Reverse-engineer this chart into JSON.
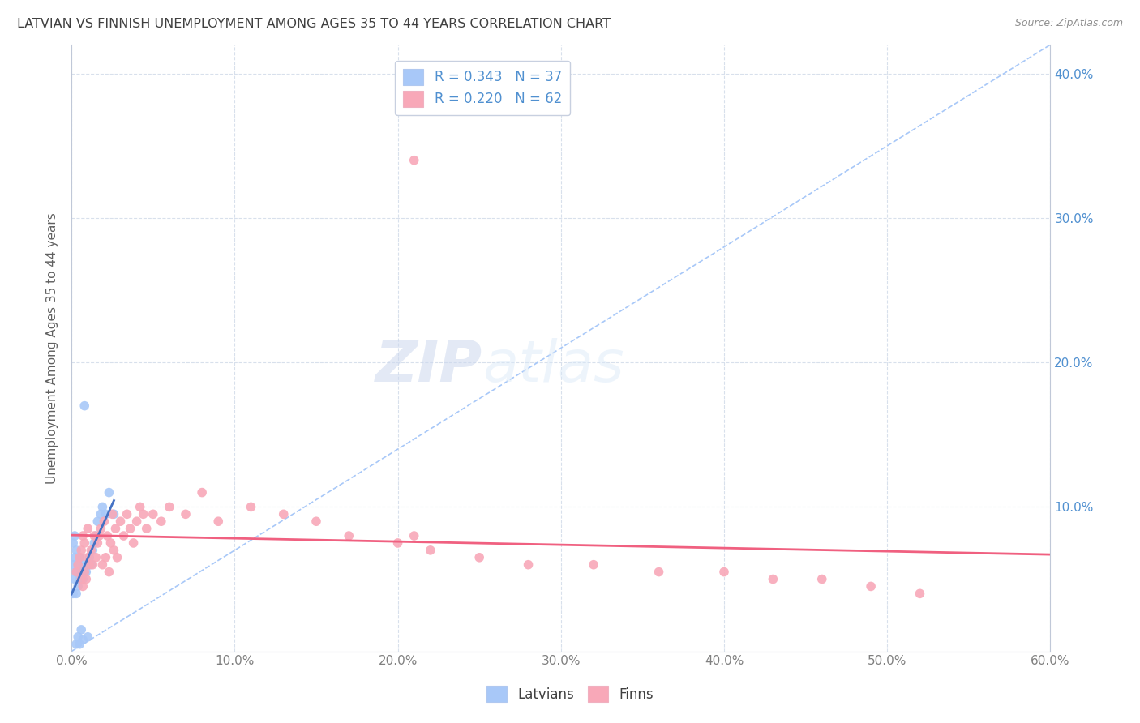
{
  "title": "LATVIAN VS FINNISH UNEMPLOYMENT AMONG AGES 35 TO 44 YEARS CORRELATION CHART",
  "source": "Source: ZipAtlas.com",
  "ylabel": "Unemployment Among Ages 35 to 44 years",
  "xlim": [
    0.0,
    0.6
  ],
  "ylim": [
    0.0,
    0.42
  ],
  "latvian_color": "#a8c8f8",
  "finn_color": "#f8a8b8",
  "latvian_line_color": "#4472c4",
  "finn_line_color": "#f06080",
  "diag_color": "#a8c8f8",
  "legend_r_latvian": "R = 0.343",
  "legend_n_latvian": "N = 37",
  "legend_r_finn": "R = 0.220",
  "legend_n_finn": "N = 62",
  "title_color": "#404040",
  "axis_label_color": "#606060",
  "tick_color_right": "#5090d0",
  "watermark_zip": "ZIP",
  "watermark_atlas": "atlas",
  "latvians_label": "Latvians",
  "finns_label": "Finns",
  "lv_x": [
    0.001,
    0.001,
    0.001,
    0.002,
    0.002,
    0.002,
    0.003,
    0.003,
    0.003,
    0.003,
    0.004,
    0.004,
    0.004,
    0.005,
    0.005,
    0.005,
    0.006,
    0.006,
    0.007,
    0.007,
    0.007,
    0.008,
    0.008,
    0.009,
    0.01,
    0.01,
    0.011,
    0.012,
    0.013,
    0.014,
    0.015,
    0.016,
    0.018,
    0.019,
    0.021,
    0.023,
    0.026
  ],
  "lv_y": [
    0.04,
    0.06,
    0.075,
    0.05,
    0.065,
    0.08,
    0.04,
    0.055,
    0.07,
    0.005,
    0.045,
    0.06,
    0.01,
    0.05,
    0.065,
    0.005,
    0.055,
    0.015,
    0.06,
    0.05,
    0.008,
    0.055,
    0.17,
    0.055,
    0.06,
    0.01,
    0.065,
    0.06,
    0.07,
    0.075,
    0.08,
    0.09,
    0.095,
    0.1,
    0.095,
    0.11,
    0.095
  ],
  "fn_x": [
    0.003,
    0.004,
    0.005,
    0.006,
    0.006,
    0.007,
    0.007,
    0.008,
    0.008,
    0.009,
    0.01,
    0.01,
    0.011,
    0.012,
    0.013,
    0.014,
    0.015,
    0.016,
    0.017,
    0.018,
    0.019,
    0.02,
    0.021,
    0.022,
    0.023,
    0.024,
    0.025,
    0.026,
    0.027,
    0.028,
    0.03,
    0.032,
    0.034,
    0.036,
    0.038,
    0.04,
    0.042,
    0.044,
    0.046,
    0.05,
    0.055,
    0.06,
    0.07,
    0.08,
    0.09,
    0.11,
    0.13,
    0.15,
    0.17,
    0.2,
    0.22,
    0.25,
    0.28,
    0.32,
    0.36,
    0.4,
    0.43,
    0.46,
    0.49,
    0.52,
    0.21,
    0.21
  ],
  "fn_y": [
    0.055,
    0.06,
    0.065,
    0.05,
    0.07,
    0.045,
    0.08,
    0.055,
    0.075,
    0.05,
    0.065,
    0.085,
    0.06,
    0.07,
    0.06,
    0.08,
    0.065,
    0.075,
    0.08,
    0.085,
    0.06,
    0.09,
    0.065,
    0.08,
    0.055,
    0.075,
    0.095,
    0.07,
    0.085,
    0.065,
    0.09,
    0.08,
    0.095,
    0.085,
    0.075,
    0.09,
    0.1,
    0.095,
    0.085,
    0.095,
    0.09,
    0.1,
    0.095,
    0.11,
    0.09,
    0.1,
    0.095,
    0.09,
    0.08,
    0.075,
    0.07,
    0.065,
    0.06,
    0.06,
    0.055,
    0.055,
    0.05,
    0.05,
    0.045,
    0.04,
    0.34,
    0.08
  ]
}
